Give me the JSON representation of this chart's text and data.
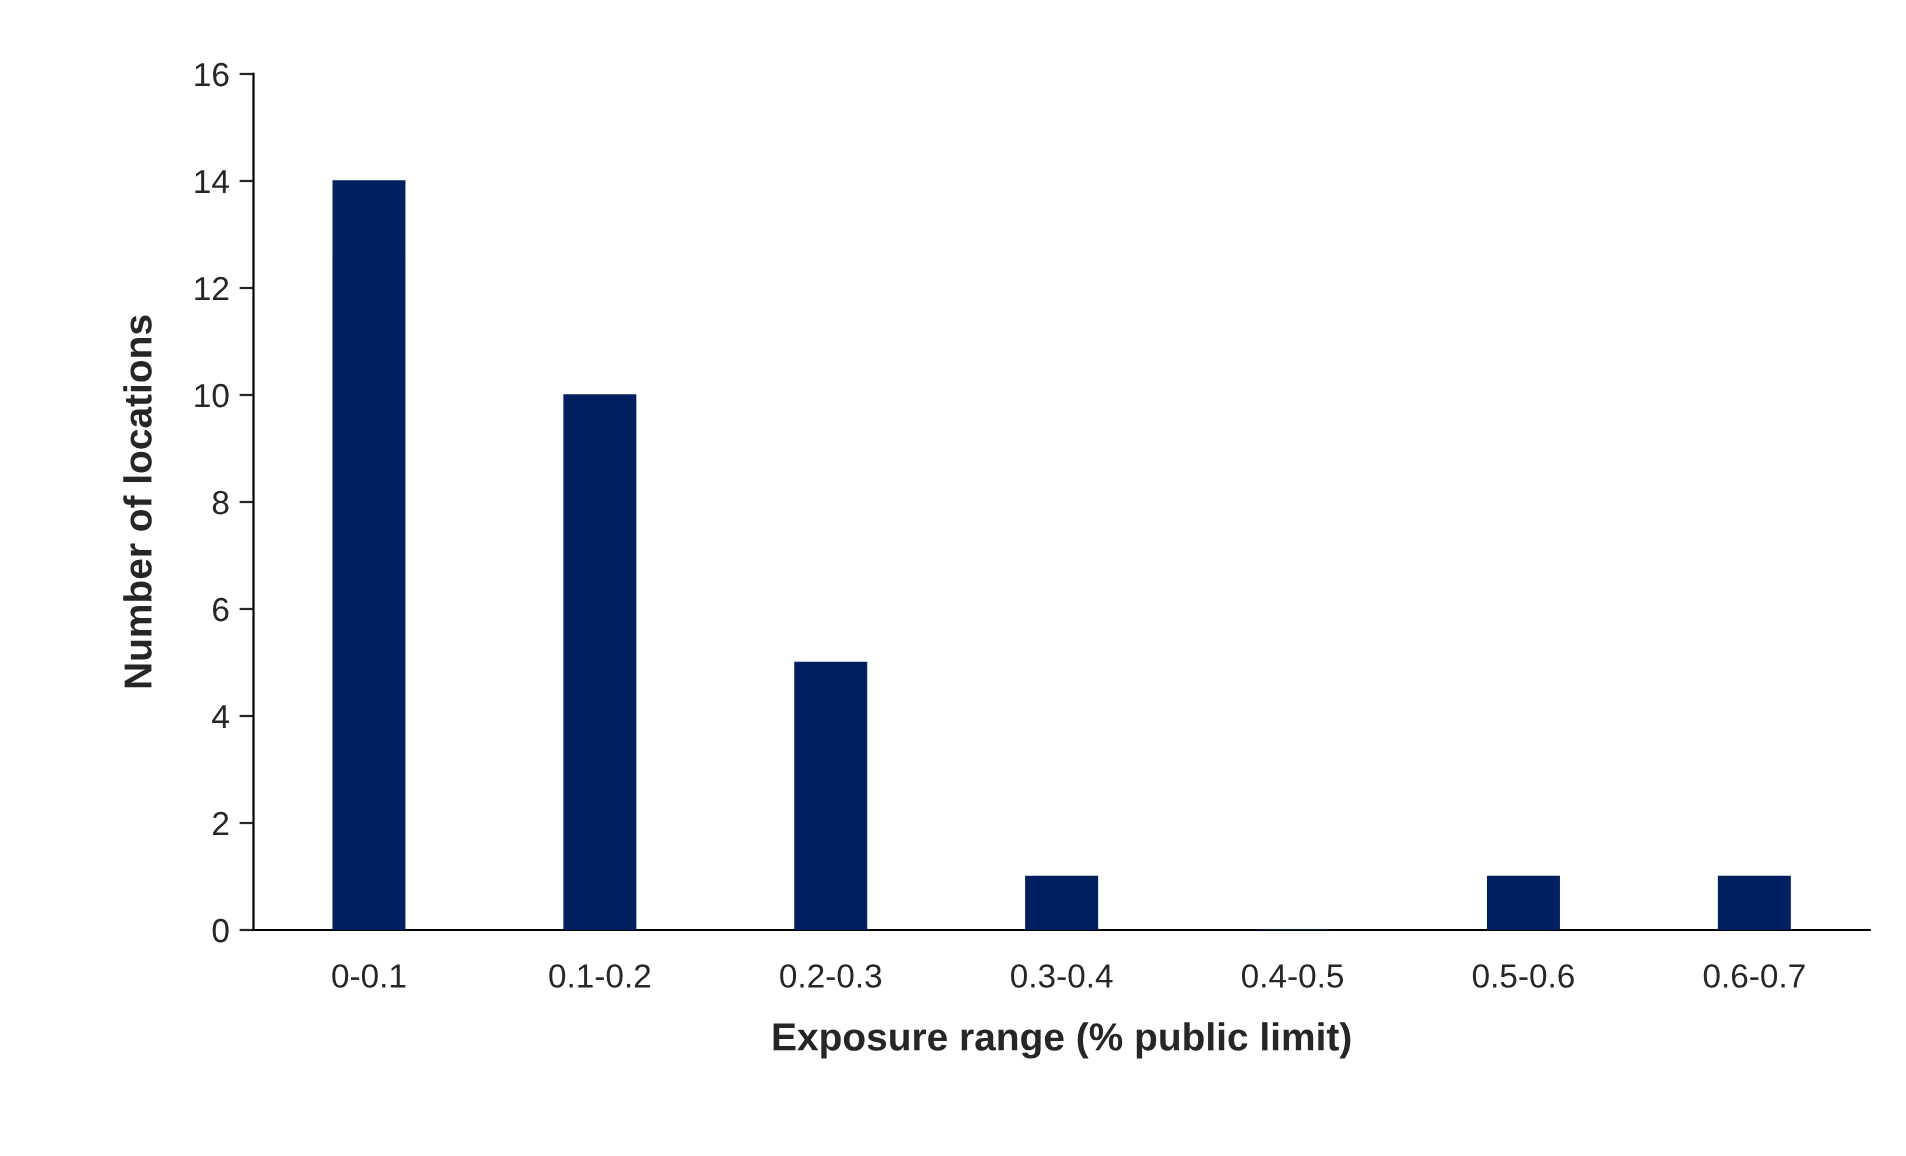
{
  "chart_data": {
    "type": "bar",
    "xlabel": "Exposure range (% public limit)",
    "ylabel": "Number of locations",
    "categories": [
      "0-0.1",
      "0.1-0.2",
      "0.2-0.3",
      "0.3-0.4",
      "0.4-0.5",
      "0.5-0.6",
      "0.6-0.7"
    ],
    "values": [
      14,
      10,
      5,
      1,
      0,
      1,
      1
    ],
    "color": "#002060",
    "ylim": [
      0,
      16
    ],
    "yticks": [
      0,
      2,
      4,
      6,
      8,
      10,
      12,
      14,
      16
    ],
    "grid": false,
    "legend": false
  }
}
